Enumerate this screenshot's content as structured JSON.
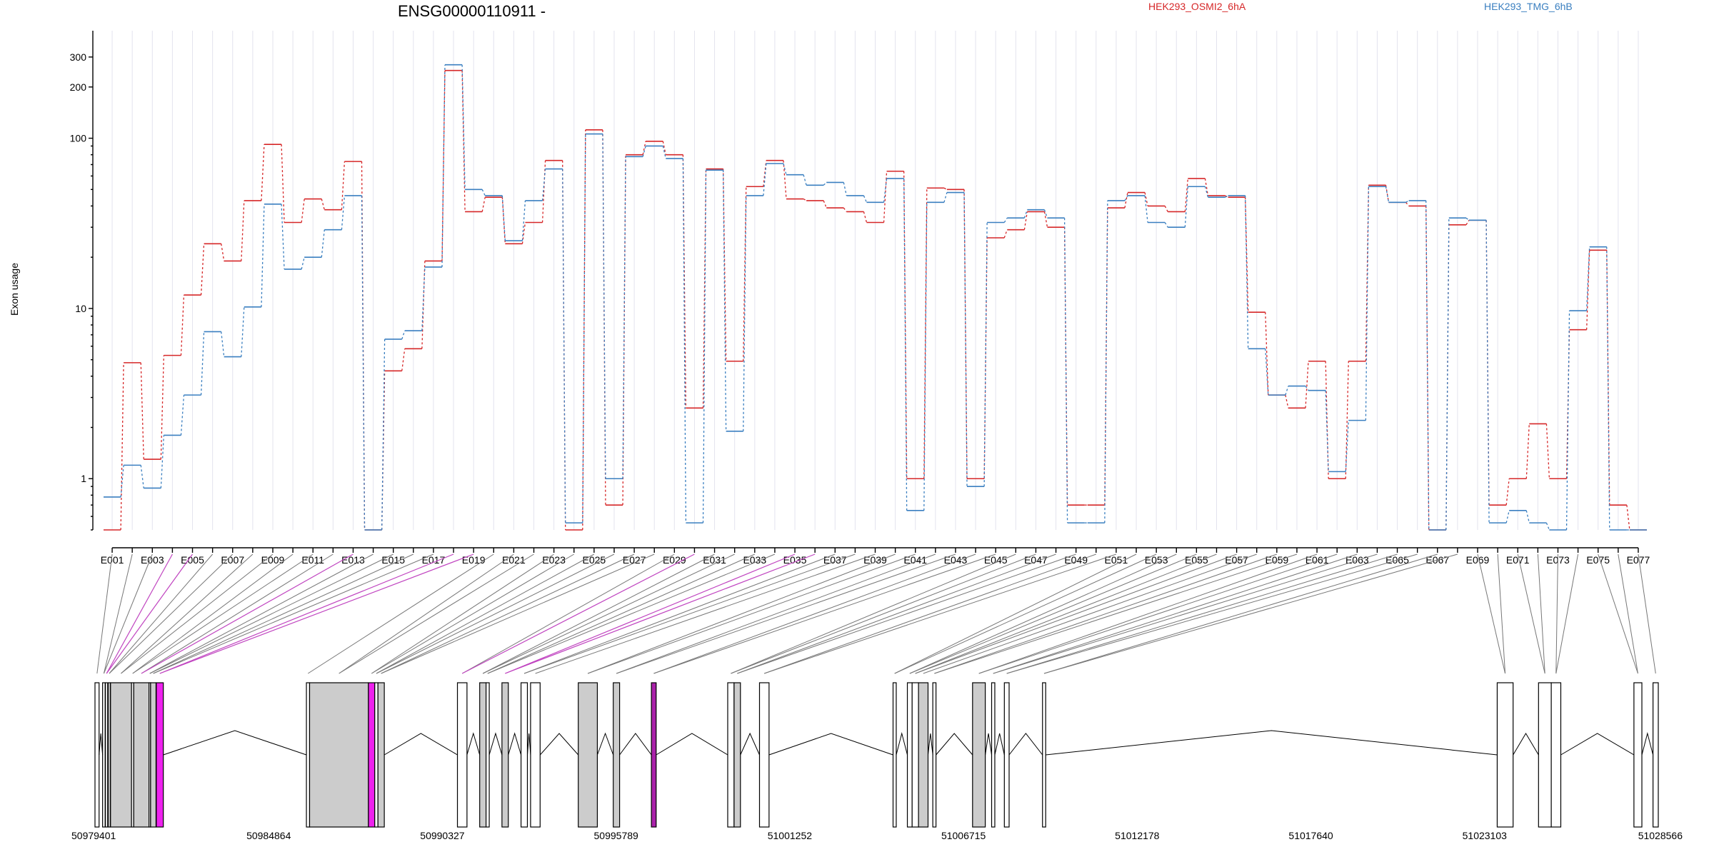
{
  "chart_data": {
    "type": "line",
    "title": "ENSG00000110911 -",
    "ylabel": "Exon usage",
    "y_scale": "log",
    "ylim": [
      0.5,
      420
    ],
    "y_ticks": [
      1,
      10,
      100,
      200,
      300
    ],
    "x_tick_labels": [
      "E001",
      "E003",
      "E005",
      "E007",
      "E009",
      "E011",
      "E013",
      "E015",
      "E017",
      "E019",
      "E021",
      "E023",
      "E025",
      "E027",
      "E029",
      "E031",
      "E033",
      "E035",
      "E037",
      "E039",
      "E041",
      "E043",
      "E045",
      "E047",
      "E049",
      "E051",
      "E053",
      "E055",
      "E057",
      "E059",
      "E061",
      "E063",
      "E065",
      "E067",
      "E069",
      "E071",
      "E073",
      "E075",
      "E077"
    ],
    "categories": [
      "E001",
      "E002",
      "E003",
      "E004",
      "E005",
      "E006",
      "E007",
      "E008",
      "E009",
      "E010",
      "E011",
      "E012",
      "E013",
      "E014",
      "E015",
      "E016",
      "E017",
      "E018",
      "E019",
      "E020",
      "E021",
      "E022",
      "E023",
      "E024",
      "E025",
      "E026",
      "E027",
      "E028",
      "E029",
      "E030",
      "E031",
      "E032",
      "E033",
      "E034",
      "E035",
      "E036",
      "E037",
      "E038",
      "E039",
      "E040",
      "E041",
      "E042",
      "E043",
      "E044",
      "E045",
      "E046",
      "E047",
      "E048",
      "E049",
      "E050",
      "E051",
      "E052",
      "E053",
      "E054",
      "E055",
      "E056",
      "E057",
      "E058",
      "E059",
      "E060",
      "E061",
      "E062",
      "E063",
      "E064",
      "E065",
      "E066",
      "E067",
      "E068",
      "E069",
      "E070",
      "E071",
      "E072",
      "E073",
      "E074",
      "E075",
      "E076",
      "E077"
    ],
    "series": [
      {
        "name": "HEK293_OSMI2_6hA",
        "color": "#d62728",
        "values": [
          0.5,
          4.8,
          1.3,
          5.3,
          12,
          24,
          19,
          43,
          92,
          32,
          44,
          38,
          73,
          0.5,
          4.3,
          5.8,
          19,
          250,
          37,
          45,
          24,
          32,
          74,
          0.5,
          112,
          0.7,
          80,
          96,
          80,
          2.6,
          66,
          4.9,
          52,
          74,
          44,
          43,
          39,
          37,
          32,
          64,
          1,
          51,
          50,
          1,
          26,
          29,
          37,
          30,
          0.7,
          0.7,
          39,
          48,
          40,
          37,
          58,
          46,
          45,
          9.5,
          3.1,
          2.6,
          4.9,
          1,
          4.9,
          53,
          42,
          40,
          0.5,
          31,
          33,
          0.7,
          1,
          2.1,
          1,
          7.5,
          22,
          0.7,
          0.5
        ]
      },
      {
        "name": "HEK293_TMG_6hB",
        "color": "#3a7fc0",
        "values": [
          0.78,
          1.2,
          0.88,
          1.8,
          3.1,
          7.3,
          5.2,
          10.2,
          41,
          17,
          20,
          29,
          46,
          0.5,
          6.6,
          7.4,
          17.5,
          270,
          50,
          46,
          25,
          43,
          66,
          0.55,
          106,
          1,
          78,
          90,
          76,
          0.55,
          65,
          1.9,
          46,
          71,
          61,
          53,
          55,
          46,
          42,
          58,
          0.65,
          42,
          48,
          0.9,
          32,
          34,
          38,
          34,
          0.55,
          0.55,
          43,
          46,
          32,
          30,
          52,
          45,
          46,
          5.8,
          3.1,
          3.5,
          3.3,
          1.1,
          2.2,
          52,
          42,
          43,
          0.5,
          34,
          33,
          0.55,
          0.65,
          0.55,
          0.5,
          9.7,
          23,
          0.5,
          0.5
        ]
      }
    ],
    "gene_model": {
      "coordinate_labels": [
        "50979401",
        "50984864",
        "50990327",
        "50995789",
        "51001252",
        "51006715",
        "51012178",
        "51017640",
        "51023103",
        "51028566"
      ],
      "exons": [
        {
          "start": 50979401,
          "end": 50979530,
          "fill": "#ffffff"
        },
        {
          "start": 50979640,
          "end": 50979720,
          "fill": "#ffffff"
        },
        {
          "start": 50979730,
          "end": 50979800,
          "fill": "#ffffff"
        },
        {
          "start": 50979820,
          "end": 50979880,
          "fill": "#ffffff"
        },
        {
          "start": 50979890,
          "end": 50980550,
          "fill": "#cccccc"
        },
        {
          "start": 50980550,
          "end": 50980620,
          "fill": "#ffffff"
        },
        {
          "start": 50980620,
          "end": 50981100,
          "fill": "#cccccc"
        },
        {
          "start": 50981100,
          "end": 50981150,
          "fill": "#ffffff"
        },
        {
          "start": 50981150,
          "end": 50981320,
          "fill": "#cccccc"
        },
        {
          "start": 50981330,
          "end": 50981550,
          "fill": "#ee22ee"
        },
        {
          "start": 50986050,
          "end": 50986150,
          "fill": "#ffffff"
        },
        {
          "start": 50986150,
          "end": 50988000,
          "fill": "#cccccc"
        },
        {
          "start": 50988000,
          "end": 50988200,
          "fill": "#ee22ee"
        },
        {
          "start": 50988200,
          "end": 50988300,
          "fill": "#ffffff"
        },
        {
          "start": 50988300,
          "end": 50988500,
          "fill": "#cccccc"
        },
        {
          "start": 50990800,
          "end": 50991100,
          "fill": "#ffffff"
        },
        {
          "start": 50991500,
          "end": 50991700,
          "fill": "#cccccc"
        },
        {
          "start": 50991700,
          "end": 50991800,
          "fill": "#ffffff"
        },
        {
          "start": 50992200,
          "end": 50992400,
          "fill": "#cccccc"
        },
        {
          "start": 50992800,
          "end": 50993000,
          "fill": "#ffffff"
        },
        {
          "start": 50993100,
          "end": 50993400,
          "fill": "#ffffff"
        },
        {
          "start": 50994600,
          "end": 50995200,
          "fill": "#cccccc"
        },
        {
          "start": 50995700,
          "end": 50995900,
          "fill": "#cccccc"
        },
        {
          "start": 50996900,
          "end": 50997050,
          "fill": "#aa22aa"
        },
        {
          "start": 50999300,
          "end": 50999500,
          "fill": "#ffffff"
        },
        {
          "start": 50999500,
          "end": 50999700,
          "fill": "#cccccc"
        },
        {
          "start": 51000300,
          "end": 51000600,
          "fill": "#ffffff"
        },
        {
          "start": 51004500,
          "end": 51004600,
          "fill": "#ffffff"
        },
        {
          "start": 51004950,
          "end": 51005100,
          "fill": "#ffffff"
        },
        {
          "start": 51005100,
          "end": 51005300,
          "fill": "#ffffff"
        },
        {
          "start": 51005300,
          "end": 51005600,
          "fill": "#cccccc"
        },
        {
          "start": 51005750,
          "end": 51005850,
          "fill": "#ffffff"
        },
        {
          "start": 51007000,
          "end": 51007400,
          "fill": "#cccccc"
        },
        {
          "start": 51007600,
          "end": 51007700,
          "fill": "#ffffff"
        },
        {
          "start": 51008000,
          "end": 51008150,
          "fill": "#ffffff"
        },
        {
          "start": 51009200,
          "end": 51009300,
          "fill": "#ffffff"
        },
        {
          "start": 51023500,
          "end": 51024000,
          "fill": "#ffffff"
        },
        {
          "start": 51024800,
          "end": 51025200,
          "fill": "#ffffff"
        },
        {
          "start": 51025200,
          "end": 51025500,
          "fill": "#ffffff"
        },
        {
          "start": 51027800,
          "end": 51028050,
          "fill": "#ffffff"
        },
        {
          "start": 51028400,
          "end": 51028566,
          "fill": "#ffffff"
        }
      ],
      "highlighted_exons": [
        "E004",
        "E005",
        "E013",
        "E018",
        "E019",
        "E030",
        "E035",
        "E036"
      ]
    },
    "legend": "top"
  }
}
